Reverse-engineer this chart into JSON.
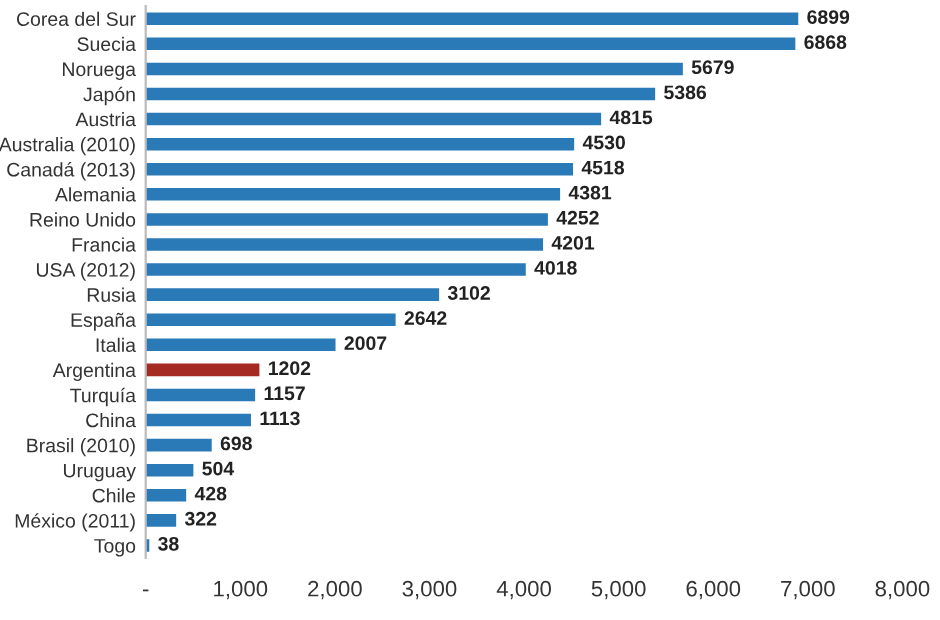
{
  "chart_data": {
    "type": "bar",
    "orientation": "horizontal",
    "categories": [
      "Corea del Sur",
      "Suecia",
      "Noruega",
      "Japón",
      "Austria",
      "Australia (2010)",
      "Canadá (2013)",
      "Alemania",
      "Reino Unido",
      "Francia",
      "USA (2012)",
      "Rusia",
      "España",
      "Italia",
      "Argentina",
      "Turquía",
      "China",
      "Brasil (2010)",
      "Uruguay",
      "Chile",
      "México (2011)",
      "Togo"
    ],
    "values": [
      6899,
      6868,
      5679,
      5386,
      4815,
      4530,
      4518,
      4381,
      4252,
      4201,
      4018,
      3102,
      2642,
      2007,
      1202,
      1157,
      1113,
      698,
      504,
      428,
      322,
      38
    ],
    "colors": [
      "#2a7ab8",
      "#2a7ab8",
      "#2a7ab8",
      "#2a7ab8",
      "#2a7ab8",
      "#2a7ab8",
      "#2a7ab8",
      "#2a7ab8",
      "#2a7ab8",
      "#2a7ab8",
      "#2a7ab8",
      "#2a7ab8",
      "#2a7ab8",
      "#2a7ab8",
      "#a52a22",
      "#2a7ab8",
      "#2a7ab8",
      "#2a7ab8",
      "#2a7ab8",
      "#2a7ab8",
      "#2a7ab8",
      "#2a7ab8"
    ],
    "xlim": [
      0,
      8000
    ],
    "xticks": [
      {
        "value": 0,
        "label": "-"
      },
      {
        "value": 1000,
        "label": "1,000"
      },
      {
        "value": 2000,
        "label": "2,000"
      },
      {
        "value": 3000,
        "label": "3,000"
      },
      {
        "value": 4000,
        "label": "4,000"
      },
      {
        "value": 5000,
        "label": "5,000"
      },
      {
        "value": 6000,
        "label": "6,000"
      },
      {
        "value": 7000,
        "label": "7,000"
      },
      {
        "value": 8000,
        "label": "8,000"
      }
    ],
    "data_labels": true,
    "grid": false,
    "legend": false
  }
}
